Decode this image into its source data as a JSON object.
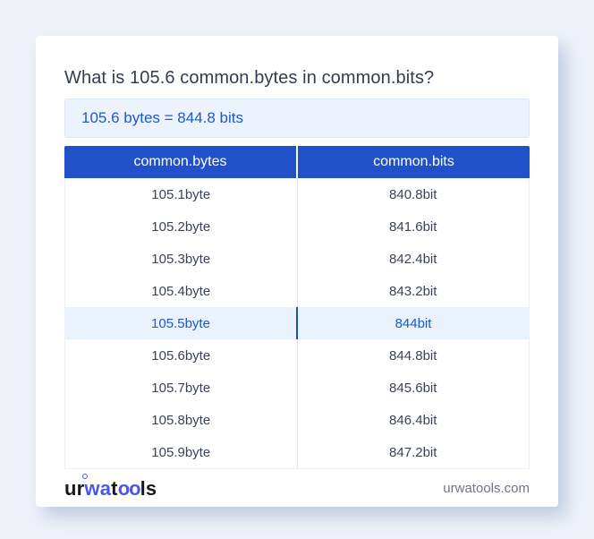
{
  "question": "What is 105.6 common.bytes in common.bits?",
  "result": "105.6 bytes = 844.8 bits",
  "table": {
    "columns": [
      "common.bytes",
      "common.bits"
    ],
    "highlighted_index": 4,
    "rows": [
      [
        "105.1byte",
        "840.8bit"
      ],
      [
        "105.2byte",
        "841.6bit"
      ],
      [
        "105.3byte",
        "842.4bit"
      ],
      [
        "105.4byte",
        "843.2bit"
      ],
      [
        "105.5byte",
        "844bit"
      ],
      [
        "105.6byte",
        "844.8bit"
      ],
      [
        "105.7byte",
        "845.6bit"
      ],
      [
        "105.8byte",
        "846.4bit"
      ],
      [
        "105.9byte",
        "847.2bit"
      ]
    ]
  },
  "footer": {
    "logo_segments": [
      {
        "text": "ur",
        "accent": false,
        "ring": false
      },
      {
        "text": "wa",
        "accent": true,
        "ring": true
      },
      {
        "text": "t",
        "accent": false,
        "ring": false
      },
      {
        "text": "oo",
        "accent": true,
        "ring": false
      },
      {
        "text": "ls",
        "accent": false,
        "ring": false
      }
    ],
    "site": "urwatools.com"
  },
  "colors": {
    "accent_blue": "#2051c9",
    "result_text": "#1d59c8",
    "result_bg": "#ecf3fd",
    "highlight_bg": "#e9f2fd",
    "highlight_divider": "#1d4fae",
    "logo_accent": "#4a56ee",
    "page_bg": "#eef1f8"
  }
}
